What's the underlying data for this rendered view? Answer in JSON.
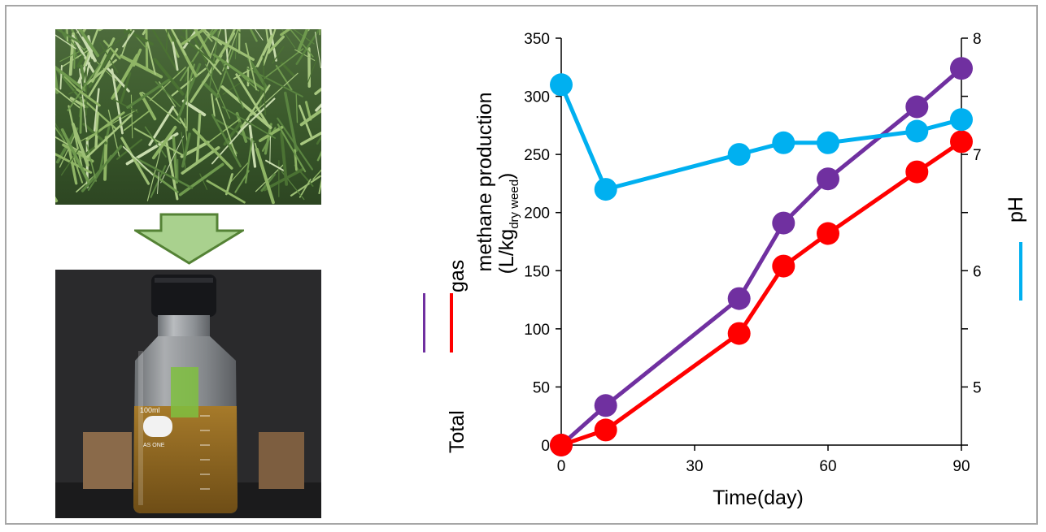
{
  "colors": {
    "total_gas": "#7030a0",
    "methane": "#ff0000",
    "ph": "#00b0f0",
    "arrow_fill": "#a9d18e",
    "arrow_stroke": "#548235",
    "frame": "#a6a6a6"
  },
  "images": {
    "top": "photo of green grass weeds",
    "bottom": "glass lab bottle with brown liquid labeled 100ml AS ONE"
  },
  "bottle_label": {
    "volume": "100ml",
    "brand": "AS ONE"
  },
  "chart_data": {
    "type": "line",
    "xlabel": "Time(day)",
    "x": [
      0,
      10,
      40,
      50,
      60,
      80,
      90
    ],
    "xlim": [
      0,
      90
    ],
    "xticks": [
      0,
      30,
      60,
      90
    ],
    "ylim": [
      0,
      350
    ],
    "yticks": [
      0,
      50,
      100,
      150,
      200,
      250,
      300,
      350
    ],
    "y2lim": [
      4.5,
      8
    ],
    "y2ticks": [
      5,
      6,
      7,
      8
    ],
    "y2ticks_minor": [
      4.5,
      5.5,
      6.5,
      7.5
    ],
    "ylabel": {
      "line1_total": "Total",
      "line1_gas": "gas",
      "line2": "methane production",
      "line3_prefix": "(L/kg",
      "line3_sub": "dry weed",
      "line3_suffix": ")"
    },
    "y2label": "pH",
    "grid": false,
    "series": [
      {
        "key": "total_gas",
        "axis": "left",
        "values": [
          0,
          34,
          126,
          191,
          229,
          291,
          324
        ]
      },
      {
        "key": "methane",
        "axis": "left",
        "values": [
          0,
          13,
          96,
          154,
          182,
          235,
          261
        ]
      },
      {
        "key": "ph",
        "axis": "right",
        "values": [
          7.6,
          6.7,
          7.0,
          7.1,
          7.1,
          7.2,
          7.3
        ]
      }
    ]
  }
}
